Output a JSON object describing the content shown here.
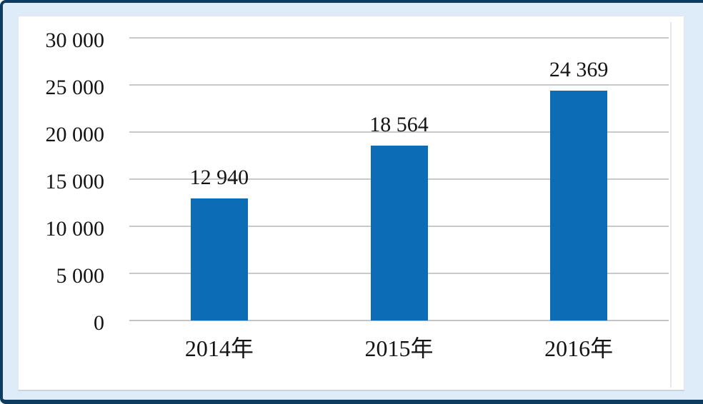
{
  "chart_data": {
    "type": "bar",
    "categories": [
      "2014年",
      "2015年",
      "2016年"
    ],
    "values": [
      12940,
      18564,
      24369
    ],
    "data_labels": [
      "12 940",
      "18 564",
      "24 369"
    ],
    "ylim": [
      0,
      30000
    ],
    "y_ticks": [
      0,
      5000,
      10000,
      15000,
      20000,
      25000,
      30000
    ],
    "y_tick_labels": [
      "0",
      "5 000",
      "10 000",
      "15 000",
      "20 000",
      "25 000",
      "30 000"
    ],
    "grid": true,
    "legend": false,
    "title": "",
    "xlabel": "",
    "ylabel": ""
  },
  "colors": {
    "bar": "#0C6DB6",
    "frame_border": "#0E3C61",
    "frame_background": "#DDECF8",
    "panel_background": "#FFFFFF",
    "gridline": "#C9C9C9",
    "axis_line": "#C4C4C4",
    "text": "#141414"
  }
}
